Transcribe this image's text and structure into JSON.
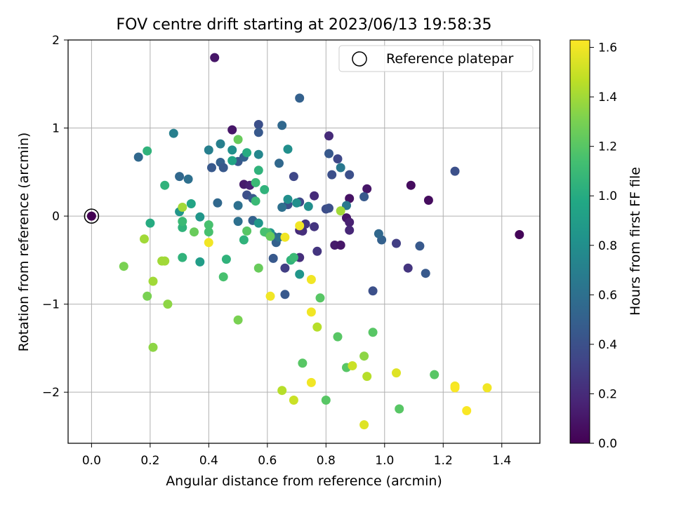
{
  "chart_data": {
    "type": "scatter",
    "title": "FOV centre drift starting at 2023/06/13 19:58:35",
    "xlabel": "Angular distance from reference (arcmin)",
    "ylabel": "Rotation from reference (arcmin)",
    "xlim": [
      -0.08,
      1.53
    ],
    "ylim": [
      -2.58,
      2.0
    ],
    "xticks": [
      0.0,
      0.2,
      0.4,
      0.6,
      0.8,
      1.0,
      1.2,
      1.4
    ],
    "xtick_labels": [
      "0.0",
      "0.2",
      "0.4",
      "0.6",
      "0.8",
      "1.0",
      "1.2",
      "1.4"
    ],
    "yticks": [
      2,
      1,
      0,
      -1,
      -2
    ],
    "ytick_labels": [
      "2",
      "1",
      "0",
      "−1",
      "−2"
    ],
    "grid": true,
    "legend": {
      "position": "top-right",
      "label": "Reference platepar"
    },
    "reference_point": {
      "x": 0.0,
      "y": 0.0,
      "hours": 0.0
    },
    "colorbar": {
      "label": "Hours from first FF file",
      "range": [
        0.0,
        1.63
      ],
      "ticks": [
        0.0,
        0.2,
        0.4,
        0.6,
        0.8,
        1.0,
        1.2,
        1.4,
        1.6
      ],
      "tick_labels": [
        "0.0",
        "0.2",
        "0.4",
        "0.6",
        "0.8",
        "1.0",
        "1.2",
        "1.4",
        "1.6"
      ],
      "colormap": "viridis"
    },
    "points": [
      {
        "x": 0.42,
        "y": 1.8,
        "h": 0.1
      },
      {
        "x": 0.48,
        "y": 0.98,
        "h": 0.1
      },
      {
        "x": 0.52,
        "y": 0.36,
        "h": 0.12
      },
      {
        "x": 0.54,
        "y": 0.35,
        "h": 0.15
      },
      {
        "x": 1.09,
        "y": 0.35,
        "h": 0.05
      },
      {
        "x": 1.15,
        "y": 0.18,
        "h": 0.05
      },
      {
        "x": 0.94,
        "y": 0.31,
        "h": 0.1
      },
      {
        "x": 1.46,
        "y": -0.21,
        "h": 0.02
      },
      {
        "x": 0.81,
        "y": 0.91,
        "h": 0.2
      },
      {
        "x": 0.87,
        "y": -0.02,
        "h": 0.1
      },
      {
        "x": 0.88,
        "y": 0.2,
        "h": 0.08
      },
      {
        "x": 0.83,
        "y": -0.33,
        "h": 0.12
      },
      {
        "x": 0.85,
        "y": -0.33,
        "h": 0.1
      },
      {
        "x": 0.88,
        "y": -0.07,
        "h": 0.15
      },
      {
        "x": 0.88,
        "y": -0.16,
        "h": 0.18
      },
      {
        "x": 0.71,
        "y": -0.16,
        "h": 0.2
      },
      {
        "x": 0.72,
        "y": -0.17,
        "h": 0.22
      },
      {
        "x": 0.73,
        "y": -0.09,
        "h": 0.25
      },
      {
        "x": 0.76,
        "y": -0.12,
        "h": 0.25
      },
      {
        "x": 0.71,
        "y": -0.47,
        "h": 0.22
      },
      {
        "x": 0.77,
        "y": -0.4,
        "h": 0.25
      },
      {
        "x": 0.76,
        "y": 0.23,
        "h": 0.2
      },
      {
        "x": 1.08,
        "y": -0.59,
        "h": 0.25
      },
      {
        "x": 1.04,
        "y": -0.31,
        "h": 0.3
      },
      {
        "x": 0.66,
        "y": -0.59,
        "h": 0.3
      },
      {
        "x": 0.69,
        "y": 0.45,
        "h": 0.35
      },
      {
        "x": 0.71,
        "y": 0.16,
        "h": 0.35
      },
      {
        "x": 0.67,
        "y": 0.13,
        "h": 0.4
      },
      {
        "x": 0.84,
        "y": 0.65,
        "h": 0.35
      },
      {
        "x": 0.88,
        "y": 0.47,
        "h": 0.4
      },
      {
        "x": 0.82,
        "y": 0.47,
        "h": 0.4
      },
      {
        "x": 0.8,
        "y": 0.08,
        "h": 0.38
      },
      {
        "x": 0.81,
        "y": 0.09,
        "h": 0.4
      },
      {
        "x": 0.57,
        "y": 1.04,
        "h": 0.4
      },
      {
        "x": 0.57,
        "y": 0.95,
        "h": 0.45
      },
      {
        "x": 0.71,
        "y": 1.34,
        "h": 0.5
      },
      {
        "x": 1.24,
        "y": 0.51,
        "h": 0.4
      },
      {
        "x": 0.96,
        "y": -0.85,
        "h": 0.4
      },
      {
        "x": 1.12,
        "y": -0.34,
        "h": 0.45
      },
      {
        "x": 1.14,
        "y": -0.65,
        "h": 0.45
      },
      {
        "x": 0.66,
        "y": -0.89,
        "h": 0.45
      },
      {
        "x": 0.93,
        "y": 0.22,
        "h": 0.45
      },
      {
        "x": 0.99,
        "y": -0.27,
        "h": 0.5
      },
      {
        "x": 0.98,
        "y": -0.2,
        "h": 0.55
      },
      {
        "x": 0.62,
        "y": -0.48,
        "h": 0.45
      },
      {
        "x": 0.63,
        "y": -0.3,
        "h": 0.5
      },
      {
        "x": 0.62,
        "y": -0.23,
        "h": 0.5
      },
      {
        "x": 0.55,
        "y": -0.05,
        "h": 0.5
      },
      {
        "x": 0.53,
        "y": 0.24,
        "h": 0.4
      },
      {
        "x": 0.55,
        "y": 0.2,
        "h": 0.45
      },
      {
        "x": 0.81,
        "y": 0.71,
        "h": 0.45
      },
      {
        "x": 0.5,
        "y": 0.62,
        "h": 0.45
      },
      {
        "x": 0.52,
        "y": 0.67,
        "h": 0.5
      },
      {
        "x": 0.41,
        "y": 0.55,
        "h": 0.45
      },
      {
        "x": 0.44,
        "y": 0.61,
        "h": 0.5
      },
      {
        "x": 0.45,
        "y": 0.55,
        "h": 0.45
      },
      {
        "x": 0.64,
        "y": 0.6,
        "h": 0.55
      },
      {
        "x": 0.65,
        "y": 1.03,
        "h": 0.55
      },
      {
        "x": 0.16,
        "y": 0.67,
        "h": 0.55
      },
      {
        "x": 0.3,
        "y": 0.45,
        "h": 0.55
      },
      {
        "x": 0.33,
        "y": 0.42,
        "h": 0.6
      },
      {
        "x": 0.43,
        "y": 0.15,
        "h": 0.55
      },
      {
        "x": 0.5,
        "y": 0.12,
        "h": 0.6
      },
      {
        "x": 0.5,
        "y": -0.06,
        "h": 0.6
      },
      {
        "x": 0.65,
        "y": 0.1,
        "h": 0.6
      },
      {
        "x": 0.85,
        "y": 0.55,
        "h": 0.65
      },
      {
        "x": 0.87,
        "y": 0.12,
        "h": 0.65
      },
      {
        "x": 0.64,
        "y": -0.24,
        "h": 0.6
      },
      {
        "x": 0.28,
        "y": 0.94,
        "h": 0.7
      },
      {
        "x": 0.4,
        "y": 0.75,
        "h": 0.7
      },
      {
        "x": 0.44,
        "y": 0.82,
        "h": 0.7
      },
      {
        "x": 0.48,
        "y": 0.75,
        "h": 0.8
      },
      {
        "x": 0.57,
        "y": 0.7,
        "h": 0.75
      },
      {
        "x": 0.67,
        "y": 0.76,
        "h": 0.8
      },
      {
        "x": 0.67,
        "y": 0.19,
        "h": 0.8
      },
      {
        "x": 0.7,
        "y": 0.15,
        "h": 0.8
      },
      {
        "x": 0.74,
        "y": 0.11,
        "h": 0.8
      },
      {
        "x": 0.3,
        "y": 0.05,
        "h": 0.85
      },
      {
        "x": 0.37,
        "y": -0.01,
        "h": 0.85
      },
      {
        "x": 0.57,
        "y": -0.08,
        "h": 0.85
      },
      {
        "x": 0.61,
        "y": -0.19,
        "h": 0.85
      },
      {
        "x": 0.71,
        "y": -0.66,
        "h": 0.85
      },
      {
        "x": 0.37,
        "y": -0.52,
        "h": 0.9
      },
      {
        "x": 0.34,
        "y": 0.14,
        "h": 0.95
      },
      {
        "x": 0.48,
        "y": 0.63,
        "h": 0.95
      },
      {
        "x": 0.53,
        "y": 0.72,
        "h": 1.0
      },
      {
        "x": 0.57,
        "y": 0.52,
        "h": 1.05
      },
      {
        "x": 0.59,
        "y": 0.3,
        "h": 1.05
      },
      {
        "x": 0.2,
        "y": -0.08,
        "h": 1.0
      },
      {
        "x": 0.31,
        "y": -0.13,
        "h": 1.05
      },
      {
        "x": 0.31,
        "y": -0.47,
        "h": 1.05
      },
      {
        "x": 0.46,
        "y": -0.49,
        "h": 1.05
      },
      {
        "x": 0.52,
        "y": -0.27,
        "h": 1.05
      },
      {
        "x": 0.68,
        "y": -0.5,
        "h": 1.05
      },
      {
        "x": 0.69,
        "y": -0.47,
        "h": 1.1
      },
      {
        "x": 0.19,
        "y": 0.74,
        "h": 1.05
      },
      {
        "x": 0.25,
        "y": 0.35,
        "h": 1.05
      },
      {
        "x": 0.56,
        "y": 0.38,
        "h": 1.1
      },
      {
        "x": 0.56,
        "y": 0.17,
        "h": 1.1
      },
      {
        "x": 0.31,
        "y": -0.06,
        "h": 1.1
      },
      {
        "x": 0.4,
        "y": -0.1,
        "h": 1.15
      },
      {
        "x": 0.4,
        "y": -0.18,
        "h": 1.15
      },
      {
        "x": 0.59,
        "y": -0.18,
        "h": 1.15
      },
      {
        "x": 0.6,
        "y": -0.19,
        "h": 1.15
      },
      {
        "x": 0.45,
        "y": -0.69,
        "h": 1.15
      },
      {
        "x": 0.53,
        "y": -0.17,
        "h": 1.2
      },
      {
        "x": 0.61,
        "y": -0.23,
        "h": 1.25
      },
      {
        "x": 0.35,
        "y": -0.18,
        "h": 1.25
      },
      {
        "x": 0.78,
        "y": -0.93,
        "h": 1.2
      },
      {
        "x": 0.72,
        "y": -1.67,
        "h": 1.2
      },
      {
        "x": 0.8,
        "y": -2.09,
        "h": 1.2
      },
      {
        "x": 0.84,
        "y": -1.37,
        "h": 1.2
      },
      {
        "x": 0.87,
        "y": -1.72,
        "h": 1.2
      },
      {
        "x": 0.96,
        "y": -1.32,
        "h": 1.2
      },
      {
        "x": 1.05,
        "y": -2.19,
        "h": 1.2
      },
      {
        "x": 1.17,
        "y": -1.8,
        "h": 1.2
      },
      {
        "x": 0.5,
        "y": 0.87,
        "h": 1.25
      },
      {
        "x": 0.57,
        "y": -0.59,
        "h": 1.25
      },
      {
        "x": 0.11,
        "y": -0.57,
        "h": 1.3
      },
      {
        "x": 0.19,
        "y": -0.91,
        "h": 1.3
      },
      {
        "x": 0.5,
        "y": -1.18,
        "h": 1.3
      },
      {
        "x": 0.21,
        "y": -1.49,
        "h": 1.35
      },
      {
        "x": 0.21,
        "y": -0.74,
        "h": 1.4
      },
      {
        "x": 0.26,
        "y": -1.0,
        "h": 1.35
      },
      {
        "x": 0.24,
        "y": -0.51,
        "h": 1.4
      },
      {
        "x": 0.25,
        "y": -0.51,
        "h": 1.4
      },
      {
        "x": 0.18,
        "y": -0.26,
        "h": 1.4
      },
      {
        "x": 0.31,
        "y": 0.1,
        "h": 1.4
      },
      {
        "x": 0.85,
        "y": 0.06,
        "h": 1.4
      },
      {
        "x": 0.93,
        "y": -1.59,
        "h": 1.35
      },
      {
        "x": 0.94,
        "y": -1.82,
        "h": 1.45
      },
      {
        "x": 0.77,
        "y": -1.26,
        "h": 1.45
      },
      {
        "x": 0.65,
        "y": -1.98,
        "h": 1.45
      },
      {
        "x": 0.89,
        "y": -1.7,
        "h": 1.5
      },
      {
        "x": 0.69,
        "y": -2.09,
        "h": 1.5
      },
      {
        "x": 1.04,
        "y": -1.78,
        "h": 1.55
      },
      {
        "x": 0.75,
        "y": -1.89,
        "h": 1.6
      },
      {
        "x": 0.93,
        "y": -2.37,
        "h": 1.55
      },
      {
        "x": 0.61,
        "y": -0.91,
        "h": 1.6
      },
      {
        "x": 0.75,
        "y": -0.72,
        "h": 1.6
      },
      {
        "x": 0.75,
        "y": -1.09,
        "h": 1.6
      },
      {
        "x": 0.66,
        "y": -0.24,
        "h": 1.6
      },
      {
        "x": 0.71,
        "y": -0.11,
        "h": 1.6
      },
      {
        "x": 0.4,
        "y": -0.3,
        "h": 1.6
      },
      {
        "x": 1.24,
        "y": -1.93,
        "h": 1.6
      },
      {
        "x": 1.24,
        "y": -1.95,
        "h": 1.62
      },
      {
        "x": 1.28,
        "y": -2.21,
        "h": 1.62
      },
      {
        "x": 1.35,
        "y": -1.95,
        "h": 1.6
      }
    ]
  }
}
